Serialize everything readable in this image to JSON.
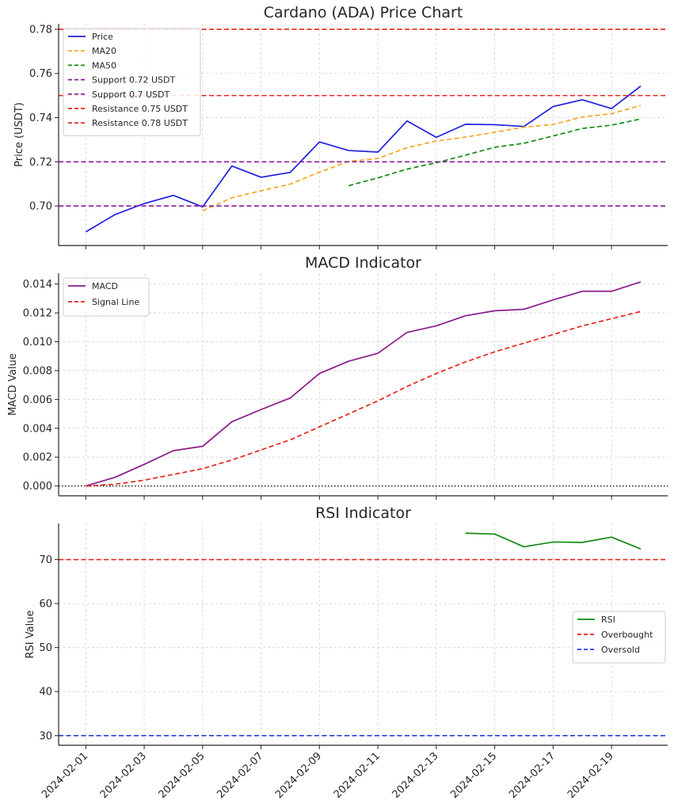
{
  "chart_data": [
    {
      "type": "line",
      "title": "Cardano (ADA) Price Chart",
      "xlabel": "",
      "ylabel": "Price (USDT)",
      "ylim": [
        0.6821,
        0.7825
      ],
      "yticks": [
        "0.70",
        "0.72",
        "0.74",
        "0.76",
        "0.78"
      ],
      "grid": true,
      "legend_position": "top-left",
      "x": [
        "2024-02-01",
        "2024-02-02",
        "2024-02-03",
        "2024-02-04",
        "2024-02-05",
        "2024-02-06",
        "2024-02-07",
        "2024-02-08",
        "2024-02-09",
        "2024-02-10",
        "2024-02-11",
        "2024-02-12",
        "2024-02-13",
        "2024-02-14",
        "2024-02-15",
        "2024-02-16",
        "2024-02-17",
        "2024-02-18",
        "2024-02-19",
        "2024-02-20"
      ],
      "series": [
        {
          "name": "Price",
          "style": "solid",
          "color": "#1f1fe0",
          "values": [
            0.6883,
            0.6961,
            0.7011,
            0.7048,
            0.6996,
            0.7181,
            0.713,
            0.7152,
            0.729,
            0.7251,
            0.7244,
            0.7385,
            0.7311,
            0.737,
            0.7368,
            0.736,
            0.745,
            0.7481,
            0.7441,
            0.7543
          ]
        },
        {
          "name": "MA20",
          "style": "dashed",
          "color": "#f5a623",
          "values": [
            null,
            null,
            null,
            null,
            0.6978,
            0.7037,
            0.7069,
            0.7099,
            0.7153,
            0.7202,
            0.7215,
            0.7264,
            0.7294,
            0.7312,
            0.7334,
            0.7357,
            0.7369,
            0.7403,
            0.7418,
            0.7455
          ]
        },
        {
          "name": "MA50",
          "style": "dashed",
          "color": "#138a13",
          "values": [
            null,
            null,
            null,
            null,
            null,
            null,
            null,
            null,
            null,
            0.7092,
            0.7127,
            0.7167,
            0.7196,
            0.723,
            0.7266,
            0.7284,
            0.7317,
            0.7351,
            0.7366,
            0.7394
          ]
        },
        {
          "name": "Support 0.72 USDT",
          "style": "dashed",
          "color": "#8b1a9e",
          "hline": 0.72
        },
        {
          "name": "Support 0.7 USDT",
          "style": "dashed",
          "color": "#8b1a9e",
          "hline": 0.7
        },
        {
          "name": "Resistance 0.75 USDT",
          "style": "dashed",
          "color": "#e8231c",
          "hline": 0.75
        },
        {
          "name": "Resistance 0.78 USDT",
          "style": "dashed",
          "color": "#e8231c",
          "hline": 0.78
        }
      ]
    },
    {
      "type": "line",
      "title": "MACD Indicator",
      "xlabel": "",
      "ylabel": "MACD Value",
      "ylim": [
        -0.00068,
        0.01475
      ],
      "yticks": [
        "0.000",
        "0.002",
        "0.004",
        "0.006",
        "0.008",
        "0.010",
        "0.012",
        "0.014"
      ],
      "grid": true,
      "legend_position": "top-left",
      "zero_line": 0,
      "x": [
        "2024-02-01",
        "2024-02-02",
        "2024-02-03",
        "2024-02-04",
        "2024-02-05",
        "2024-02-06",
        "2024-02-07",
        "2024-02-08",
        "2024-02-09",
        "2024-02-10",
        "2024-02-11",
        "2024-02-12",
        "2024-02-13",
        "2024-02-14",
        "2024-02-15",
        "2024-02-16",
        "2024-02-17",
        "2024-02-18",
        "2024-02-19",
        "2024-02-20"
      ],
      "series": [
        {
          "name": "MACD",
          "style": "solid",
          "color": "#8b1a8b",
          "values": [
            0.0,
            0.0006,
            0.0015,
            0.00245,
            0.00275,
            0.00445,
            0.0053,
            0.0061,
            0.0078,
            0.00865,
            0.0092,
            0.01065,
            0.0111,
            0.0118,
            0.01215,
            0.01225,
            0.0129,
            0.0135,
            0.0135,
            0.01415
          ]
        },
        {
          "name": "Signal Line",
          "style": "dashed",
          "color": "#e8231c",
          "values": [
            0.0,
            0.00012,
            0.0004,
            0.0008,
            0.0012,
            0.0018,
            0.0025,
            0.0032,
            0.0041,
            0.005,
            0.0059,
            0.0069,
            0.0078,
            0.0086,
            0.0093,
            0.0099,
            0.0105,
            0.0111,
            0.0116,
            0.0121
          ]
        }
      ]
    },
    {
      "type": "line",
      "title": "RSI Indicator",
      "xlabel": "",
      "ylabel": "RSI Value",
      "ylim": [
        27.8,
        78.2
      ],
      "yticks": [
        "30",
        "40",
        "50",
        "60",
        "70"
      ],
      "grid": true,
      "legend_position": "center-right",
      "x": [
        "2024-02-01",
        "2024-02-02",
        "2024-02-03",
        "2024-02-04",
        "2024-02-05",
        "2024-02-06",
        "2024-02-07",
        "2024-02-08",
        "2024-02-09",
        "2024-02-10",
        "2024-02-11",
        "2024-02-12",
        "2024-02-13",
        "2024-02-14",
        "2024-02-15",
        "2024-02-16",
        "2024-02-17",
        "2024-02-18",
        "2024-02-19",
        "2024-02-20"
      ],
      "xticks": [
        "2024-02-01",
        "2024-02-03",
        "2024-02-05",
        "2024-02-07",
        "2024-02-09",
        "2024-02-11",
        "2024-02-13",
        "2024-02-15",
        "2024-02-17",
        "2024-02-19"
      ],
      "series": [
        {
          "name": "RSI",
          "style": "solid",
          "color": "#138a13",
          "values": [
            null,
            null,
            null,
            null,
            null,
            null,
            null,
            null,
            null,
            null,
            null,
            null,
            null,
            76.0,
            75.8,
            72.9,
            74.0,
            73.9,
            75.1,
            72.4
          ]
        },
        {
          "name": "Overbought",
          "style": "dashed",
          "color": "#e8231c",
          "hline": 70
        },
        {
          "name": "Oversold",
          "style": "dashed",
          "color": "#1f3fe0",
          "hline": 30
        }
      ]
    }
  ]
}
